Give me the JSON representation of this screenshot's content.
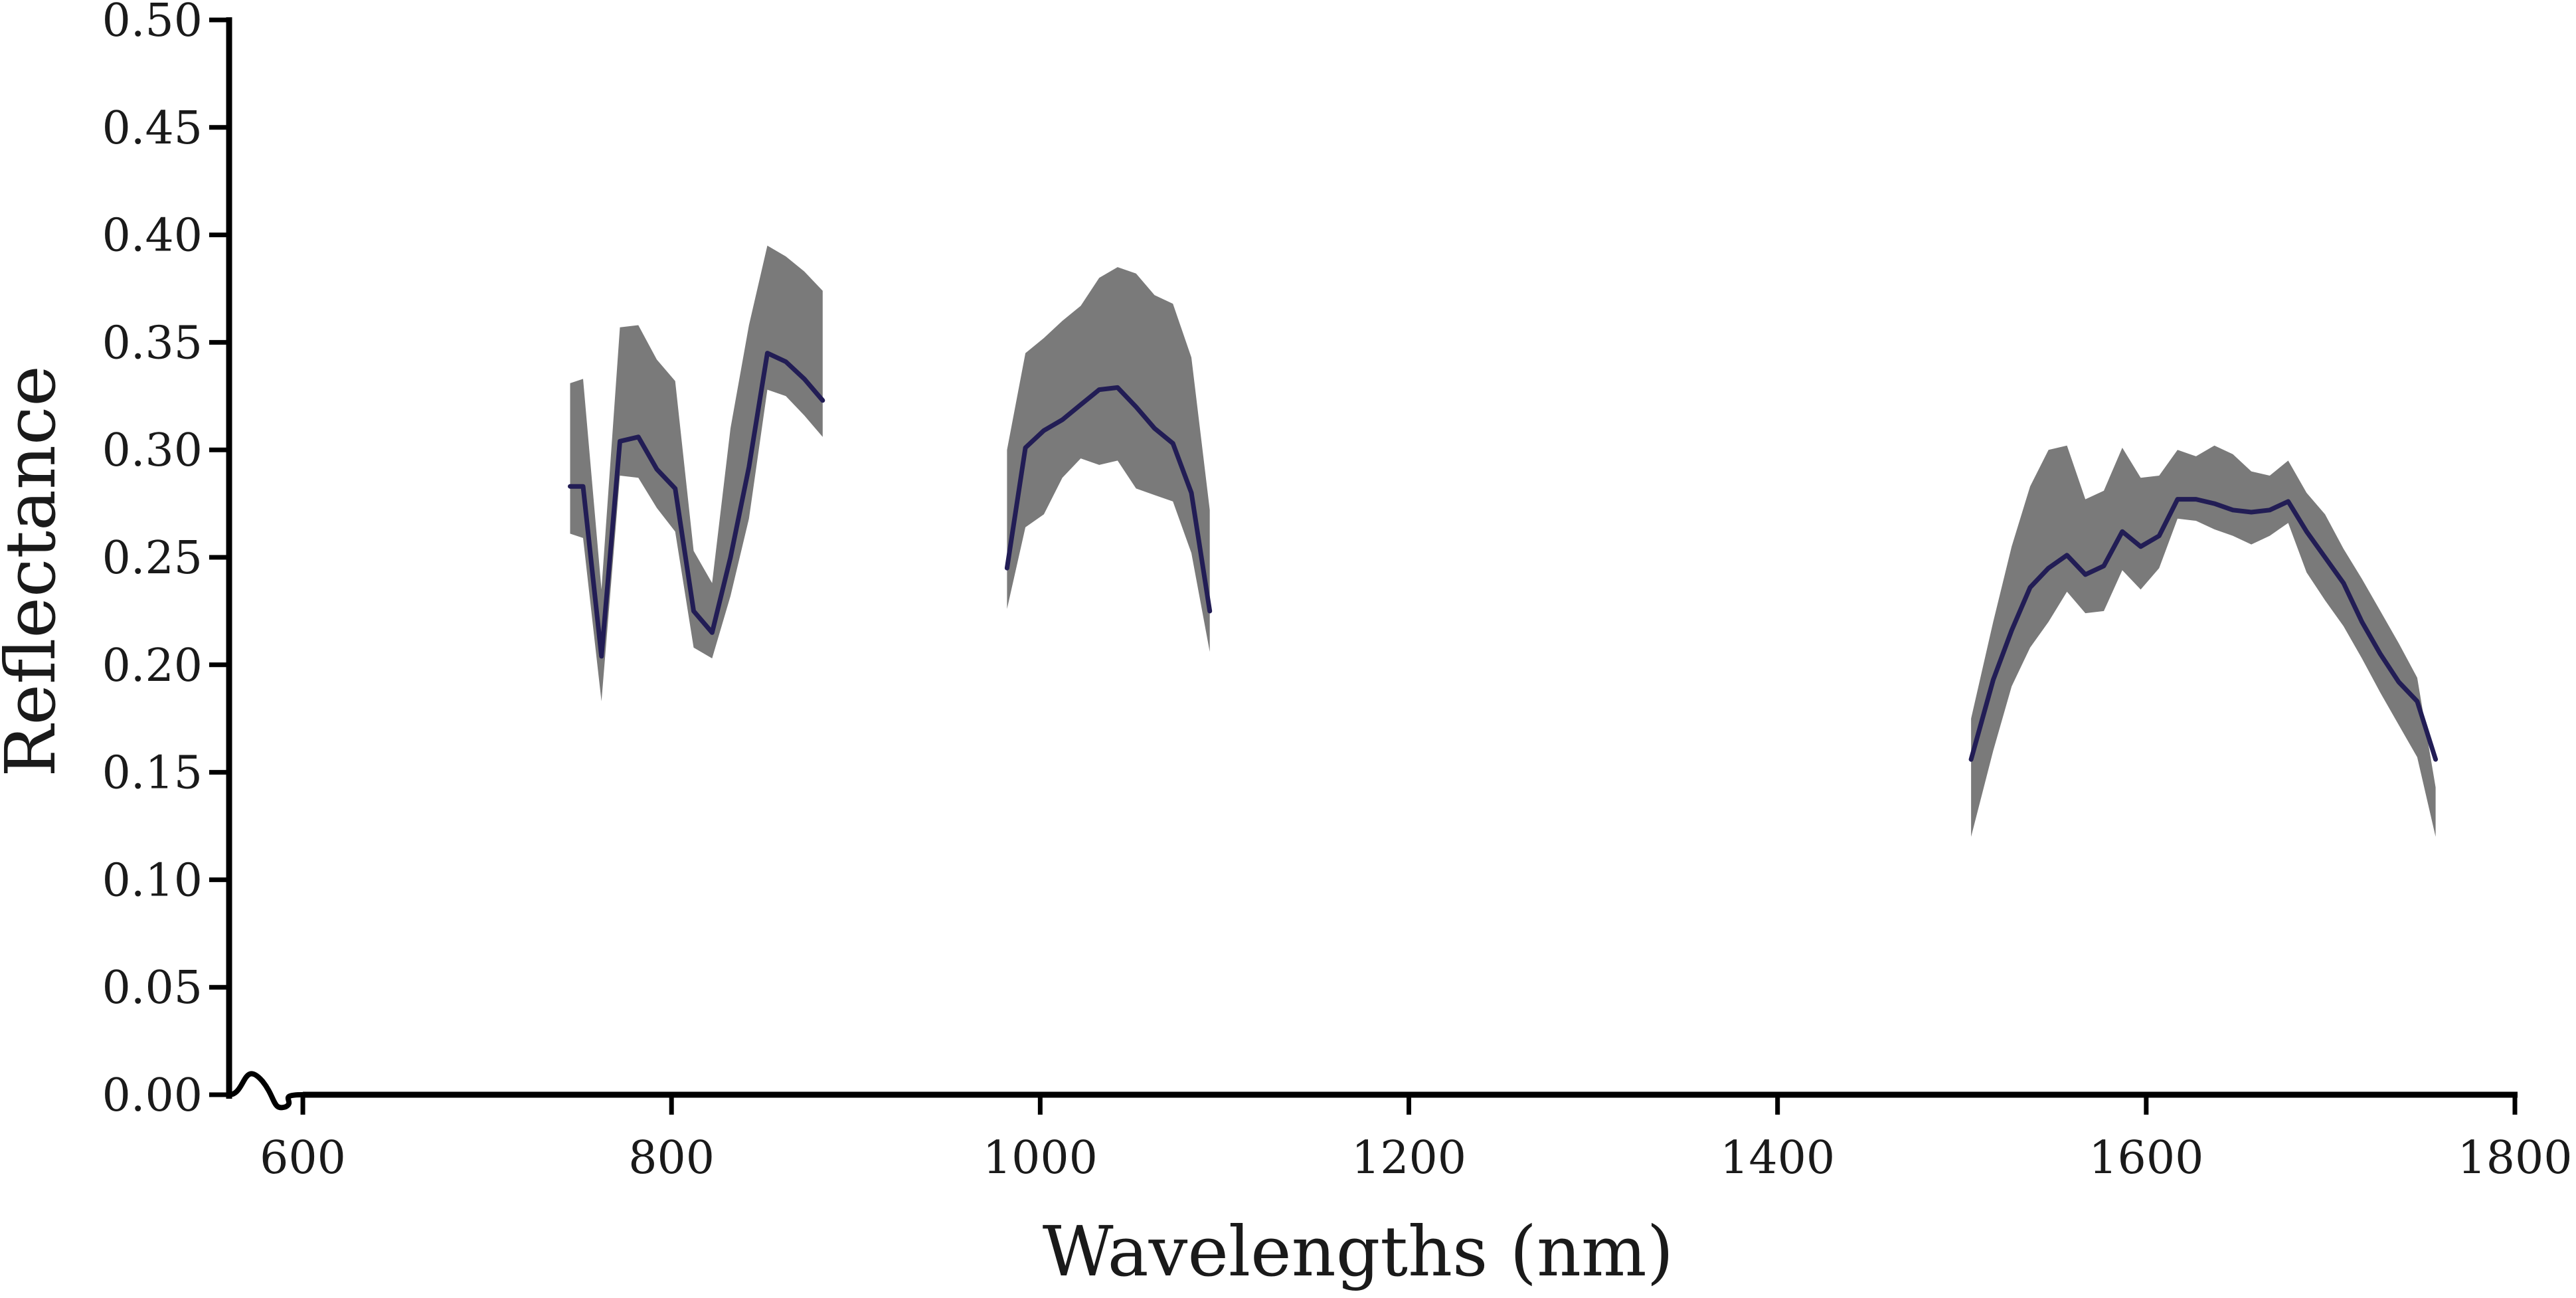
{
  "chart_data": {
    "type": "line",
    "title": "",
    "xlabel": "Wavelengths (nm)",
    "ylabel": "Reflectance",
    "xlim": [
      560,
      1800
    ],
    "ylim": [
      0,
      0.5
    ],
    "xticks": [
      {
        "value": 600,
        "label": "600"
      },
      {
        "value": 800,
        "label": "800"
      },
      {
        "value": 1000,
        "label": "1000"
      },
      {
        "value": 1200,
        "label": "1200"
      },
      {
        "value": 1400,
        "label": "1400"
      },
      {
        "value": 1600,
        "label": "1600"
      },
      {
        "value": 1800,
        "label": "1800"
      }
    ],
    "yticks": [
      {
        "value": 0.0,
        "label": "0.00"
      },
      {
        "value": 0.05,
        "label": "0.05"
      },
      {
        "value": 0.1,
        "label": "0.10"
      },
      {
        "value": 0.15,
        "label": "0.15"
      },
      {
        "value": 0.2,
        "label": "0.20"
      },
      {
        "value": 0.25,
        "label": "0.25"
      },
      {
        "value": 0.3,
        "label": "0.30"
      },
      {
        "value": 0.35,
        "label": "0.35"
      },
      {
        "value": 0.4,
        "label": "0.40"
      },
      {
        "value": 0.45,
        "label": "0.45"
      },
      {
        "value": 0.5,
        "label": "0.50"
      }
    ],
    "axis_break": "x-axis break between 560 and 600",
    "grid": false,
    "colors": {
      "line": "#221d55",
      "band": "#7a7a7a",
      "axis": "#000000"
    },
    "segments": [
      {
        "x": [
          745,
          752,
          762,
          772,
          782,
          792,
          802,
          812,
          822,
          832,
          842,
          852,
          862,
          872,
          882
        ],
        "mean": [
          0.283,
          0.283,
          0.204,
          0.304,
          0.306,
          0.291,
          0.282,
          0.225,
          0.215,
          0.25,
          0.292,
          0.345,
          0.341,
          0.333,
          0.323
        ],
        "upper": [
          0.331,
          0.333,
          0.235,
          0.357,
          0.358,
          0.342,
          0.332,
          0.253,
          0.238,
          0.31,
          0.358,
          0.395,
          0.39,
          0.383,
          0.374
        ],
        "lower": [
          0.261,
          0.259,
          0.183,
          0.288,
          0.287,
          0.273,
          0.262,
          0.208,
          0.203,
          0.232,
          0.268,
          0.328,
          0.325,
          0.316,
          0.306
        ]
      },
      {
        "x": [
          982,
          992,
          1002,
          1012,
          1022,
          1032,
          1042,
          1052,
          1062,
          1072,
          1082,
          1092
        ],
        "mean": [
          0.245,
          0.301,
          0.309,
          0.314,
          0.321,
          0.328,
          0.329,
          0.32,
          0.31,
          0.303,
          0.28,
          0.225
        ],
        "upper": [
          0.3,
          0.345,
          0.352,
          0.36,
          0.367,
          0.38,
          0.385,
          0.382,
          0.372,
          0.368,
          0.343,
          0.272
        ],
        "lower": [
          0.226,
          0.264,
          0.27,
          0.287,
          0.296,
          0.293,
          0.295,
          0.282,
          0.279,
          0.276,
          0.252,
          0.206
        ]
      },
      {
        "x": [
          1505,
          1517,
          1527,
          1537,
          1547,
          1557,
          1567,
          1577,
          1587,
          1597,
          1607,
          1617,
          1627,
          1637,
          1647,
          1657,
          1667,
          1677,
          1687,
          1697,
          1707,
          1717,
          1727,
          1737,
          1747,
          1757
        ],
        "mean": [
          0.156,
          0.193,
          0.216,
          0.236,
          0.245,
          0.251,
          0.242,
          0.246,
          0.262,
          0.255,
          0.26,
          0.277,
          0.277,
          0.275,
          0.272,
          0.271,
          0.272,
          0.276,
          0.262,
          0.25,
          0.238,
          0.22,
          0.205,
          0.192,
          0.183,
          0.156
        ],
        "upper": [
          0.175,
          0.22,
          0.255,
          0.283,
          0.3,
          0.302,
          0.277,
          0.281,
          0.301,
          0.287,
          0.288,
          0.3,
          0.297,
          0.302,
          0.298,
          0.29,
          0.288,
          0.295,
          0.28,
          0.27,
          0.254,
          0.24,
          0.225,
          0.21,
          0.194,
          0.143
        ],
        "lower": [
          0.12,
          0.16,
          0.19,
          0.208,
          0.22,
          0.234,
          0.224,
          0.225,
          0.244,
          0.235,
          0.245,
          0.268,
          0.267,
          0.263,
          0.26,
          0.256,
          0.26,
          0.266,
          0.243,
          0.23,
          0.218,
          0.203,
          0.187,
          0.172,
          0.157,
          0.12
        ]
      }
    ]
  }
}
